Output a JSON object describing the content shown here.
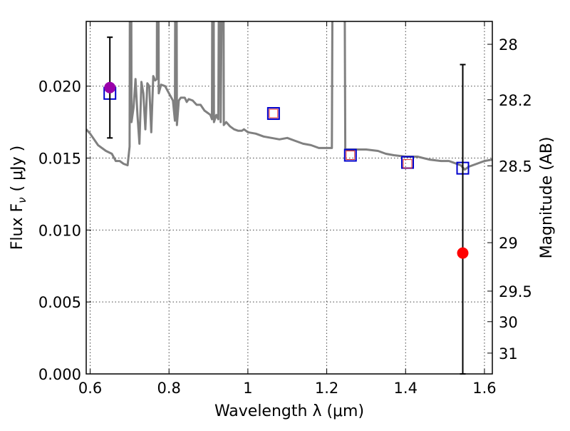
{
  "chart_data": {
    "type": "scatter",
    "title": "",
    "xlabel": "Wavelength  λ (μm)",
    "ylabel": "Flux  F",
    "ylabel_sub": "ν",
    "ylabel_unit": "( μJy )",
    "ylabel_right": "Magnitude (AB)",
    "xlim": [
      0.59,
      1.62
    ],
    "ylim": [
      0.0,
      0.0245
    ],
    "grid": true,
    "x_ticks": [
      {
        "value": 0.6,
        "label": "0.6"
      },
      {
        "value": 0.8,
        "label": "0.8"
      },
      {
        "value": 1.0,
        "label": "1"
      },
      {
        "value": 1.2,
        "label": "1.2"
      },
      {
        "value": 1.4,
        "label": "1.4"
      },
      {
        "value": 1.6,
        "label": "1.6"
      }
    ],
    "y_ticks": [
      {
        "value": 0.0,
        "label": "0.000"
      },
      {
        "value": 0.005,
        "label": "0.005"
      },
      {
        "value": 0.01,
        "label": "0.010"
      },
      {
        "value": 0.015,
        "label": "0.015"
      },
      {
        "value": 0.02,
        "label": "0.020"
      }
    ],
    "y_ticks_right": [
      {
        "mag": 28,
        "label": "28"
      },
      {
        "mag": 28.2,
        "label": "28.2"
      },
      {
        "mag": 28.5,
        "label": "28.5"
      },
      {
        "mag": 29,
        "label": "29"
      },
      {
        "mag": 29.5,
        "label": "29.5"
      },
      {
        "mag": 30,
        "label": "30"
      },
      {
        "mag": 31,
        "label": "31"
      }
    ],
    "series": [
      {
        "kind": "model_spectrum",
        "color": "#808080",
        "points": [
          [
            0.59,
            0.017
          ],
          [
            0.6,
            0.0167
          ],
          [
            0.62,
            0.0159
          ],
          [
            0.64,
            0.0155
          ],
          [
            0.655,
            0.0153
          ],
          [
            0.665,
            0.0148
          ],
          [
            0.675,
            0.0148
          ],
          [
            0.685,
            0.0146
          ],
          [
            0.695,
            0.0145
          ],
          [
            0.7,
            0.0158
          ],
          [
            0.701,
            0.03
          ],
          [
            0.704,
            0.03
          ],
          [
            0.705,
            0.0175
          ],
          [
            0.71,
            0.0185
          ],
          [
            0.715,
            0.0205
          ],
          [
            0.72,
            0.018
          ],
          [
            0.725,
            0.016
          ],
          [
            0.73,
            0.0203
          ],
          [
            0.735,
            0.0195
          ],
          [
            0.74,
            0.017
          ],
          [
            0.745,
            0.0202
          ],
          [
            0.75,
            0.02
          ],
          [
            0.755,
            0.0168
          ],
          [
            0.76,
            0.0207
          ],
          [
            0.765,
            0.0204
          ],
          [
            0.769,
            0.0205
          ],
          [
            0.77,
            0.03
          ],
          [
            0.773,
            0.03
          ],
          [
            0.774,
            0.0195
          ],
          [
            0.78,
            0.0201
          ],
          [
            0.79,
            0.02
          ],
          [
            0.8,
            0.0195
          ],
          [
            0.81,
            0.019
          ],
          [
            0.815,
            0.0176
          ],
          [
            0.816,
            0.03
          ],
          [
            0.819,
            0.03
          ],
          [
            0.82,
            0.0173
          ],
          [
            0.825,
            0.019
          ],
          [
            0.83,
            0.0192
          ],
          [
            0.84,
            0.0192
          ],
          [
            0.845,
            0.0189
          ],
          [
            0.85,
            0.0191
          ],
          [
            0.86,
            0.019
          ],
          [
            0.87,
            0.0187
          ],
          [
            0.88,
            0.0187
          ],
          [
            0.89,
            0.0183
          ],
          [
            0.9,
            0.0181
          ],
          [
            0.905,
            0.018
          ],
          [
            0.909,
            0.0177
          ],
          [
            0.91,
            0.03
          ],
          [
            0.913,
            0.03
          ],
          [
            0.914,
            0.0175
          ],
          [
            0.92,
            0.018
          ],
          [
            0.925,
            0.0177
          ],
          [
            0.927,
            0.03
          ],
          [
            0.93,
            0.03
          ],
          [
            0.931,
            0.0175
          ],
          [
            0.935,
            0.03
          ],
          [
            0.938,
            0.03
          ],
          [
            0.939,
            0.0173
          ],
          [
            0.945,
            0.0175
          ],
          [
            0.955,
            0.0172
          ],
          [
            0.965,
            0.017
          ],
          [
            0.975,
            0.0169
          ],
          [
            0.985,
            0.0169
          ],
          [
            0.99,
            0.017
          ],
          [
            1.0,
            0.0168
          ],
          [
            1.02,
            0.0167
          ],
          [
            1.04,
            0.0165
          ],
          [
            1.06,
            0.0164
          ],
          [
            1.08,
            0.0163
          ],
          [
            1.1,
            0.0164
          ],
          [
            1.12,
            0.0162
          ],
          [
            1.14,
            0.016
          ],
          [
            1.16,
            0.0159
          ],
          [
            1.18,
            0.0157
          ],
          [
            1.2,
            0.0157
          ],
          [
            1.213,
            0.0157
          ],
          [
            1.215,
            0.03
          ],
          [
            1.245,
            0.03
          ],
          [
            1.247,
            0.0156
          ],
          [
            1.27,
            0.0156
          ],
          [
            1.3,
            0.0156
          ],
          [
            1.33,
            0.0155
          ],
          [
            1.35,
            0.0153
          ],
          [
            1.37,
            0.0152
          ],
          [
            1.4,
            0.0151
          ],
          [
            1.43,
            0.0151
          ],
          [
            1.46,
            0.0149
          ],
          [
            1.49,
            0.0148
          ],
          [
            1.51,
            0.0148
          ],
          [
            1.53,
            0.0146
          ],
          [
            1.54,
            0.0145
          ],
          [
            1.55,
            0.0142
          ],
          [
            1.56,
            0.0144
          ],
          [
            1.58,
            0.0146
          ],
          [
            1.6,
            0.0148
          ],
          [
            1.62,
            0.0149
          ]
        ]
      },
      {
        "kind": "model_bandpass",
        "marker": "open-square",
        "color": "#0000cc",
        "points": [
          {
            "x": 0.65,
            "y": 0.0195
          },
          {
            "x": 1.065,
            "y": 0.0181
          },
          {
            "x": 1.26,
            "y": 0.0152
          },
          {
            "x": 1.405,
            "y": 0.0147
          },
          {
            "x": 1.545,
            "y": 0.0143
          }
        ]
      },
      {
        "kind": "model_bandpass_inner",
        "marker": "small-open-square",
        "color": "#dd2222",
        "points": [
          {
            "x": 1.065,
            "y": 0.0181
          },
          {
            "x": 1.26,
            "y": 0.0152
          },
          {
            "x": 1.405,
            "y": 0.0146
          }
        ]
      },
      {
        "kind": "observed",
        "marker": "filled-circle",
        "points": [
          {
            "x": 0.65,
            "y": 0.0199,
            "yerr_low": 0.0164,
            "yerr_high": 0.0234,
            "color": "#9900aa"
          },
          {
            "x": 1.545,
            "y": 0.0084,
            "yerr_low": 0.0,
            "yerr_high": 0.0215,
            "color": "#ff0000"
          }
        ]
      }
    ]
  }
}
